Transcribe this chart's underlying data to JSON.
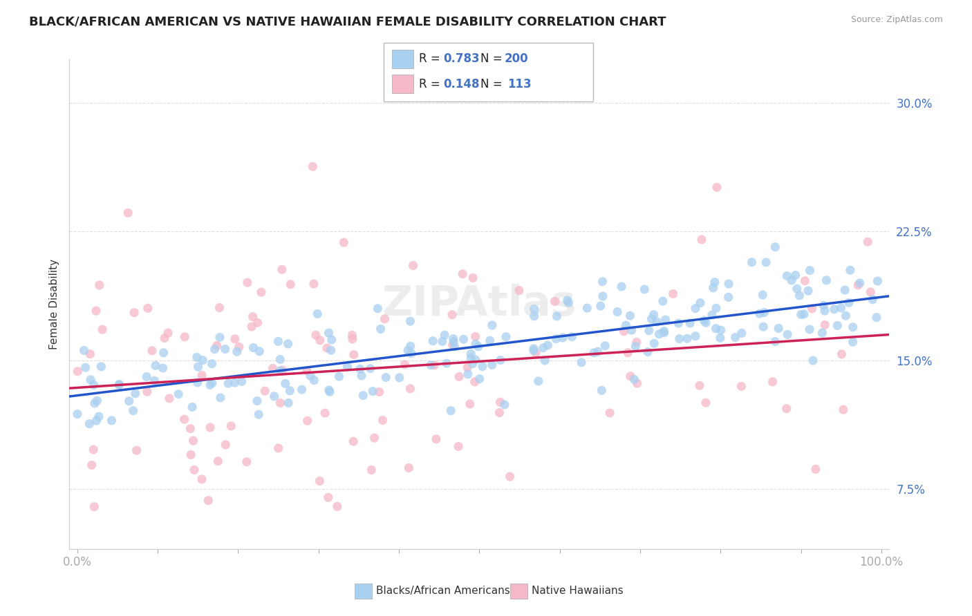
{
  "title": "BLACK/AFRICAN AMERICAN VS NATIVE HAWAIIAN FEMALE DISABILITY CORRELATION CHART",
  "source": "Source: ZipAtlas.com",
  "ylabel": "Female Disability",
  "blue_R": 0.783,
  "blue_N": 200,
  "pink_R": 0.148,
  "pink_N": 113,
  "blue_color": "#A8D0F0",
  "pink_color": "#F5B8C8",
  "blue_line_color": "#2255CC",
  "pink_line_color": "#CC2255",
  "xlim": [
    -0.01,
    1.01
  ],
  "ylim": [
    0.04,
    0.325
  ],
  "yticks": [
    0.075,
    0.15,
    0.225,
    0.3
  ],
  "ytick_labels": [
    "7.5%",
    "15.0%",
    "22.5%",
    "30.0%"
  ],
  "title_fontsize": 13,
  "legend_label_blue": "Blacks/African Americans",
  "legend_label_pink": "Native Hawaiians",
  "watermark": "ZIPAtlas",
  "background_color": "#FFFFFF",
  "grid_color": "#DDDDDD"
}
